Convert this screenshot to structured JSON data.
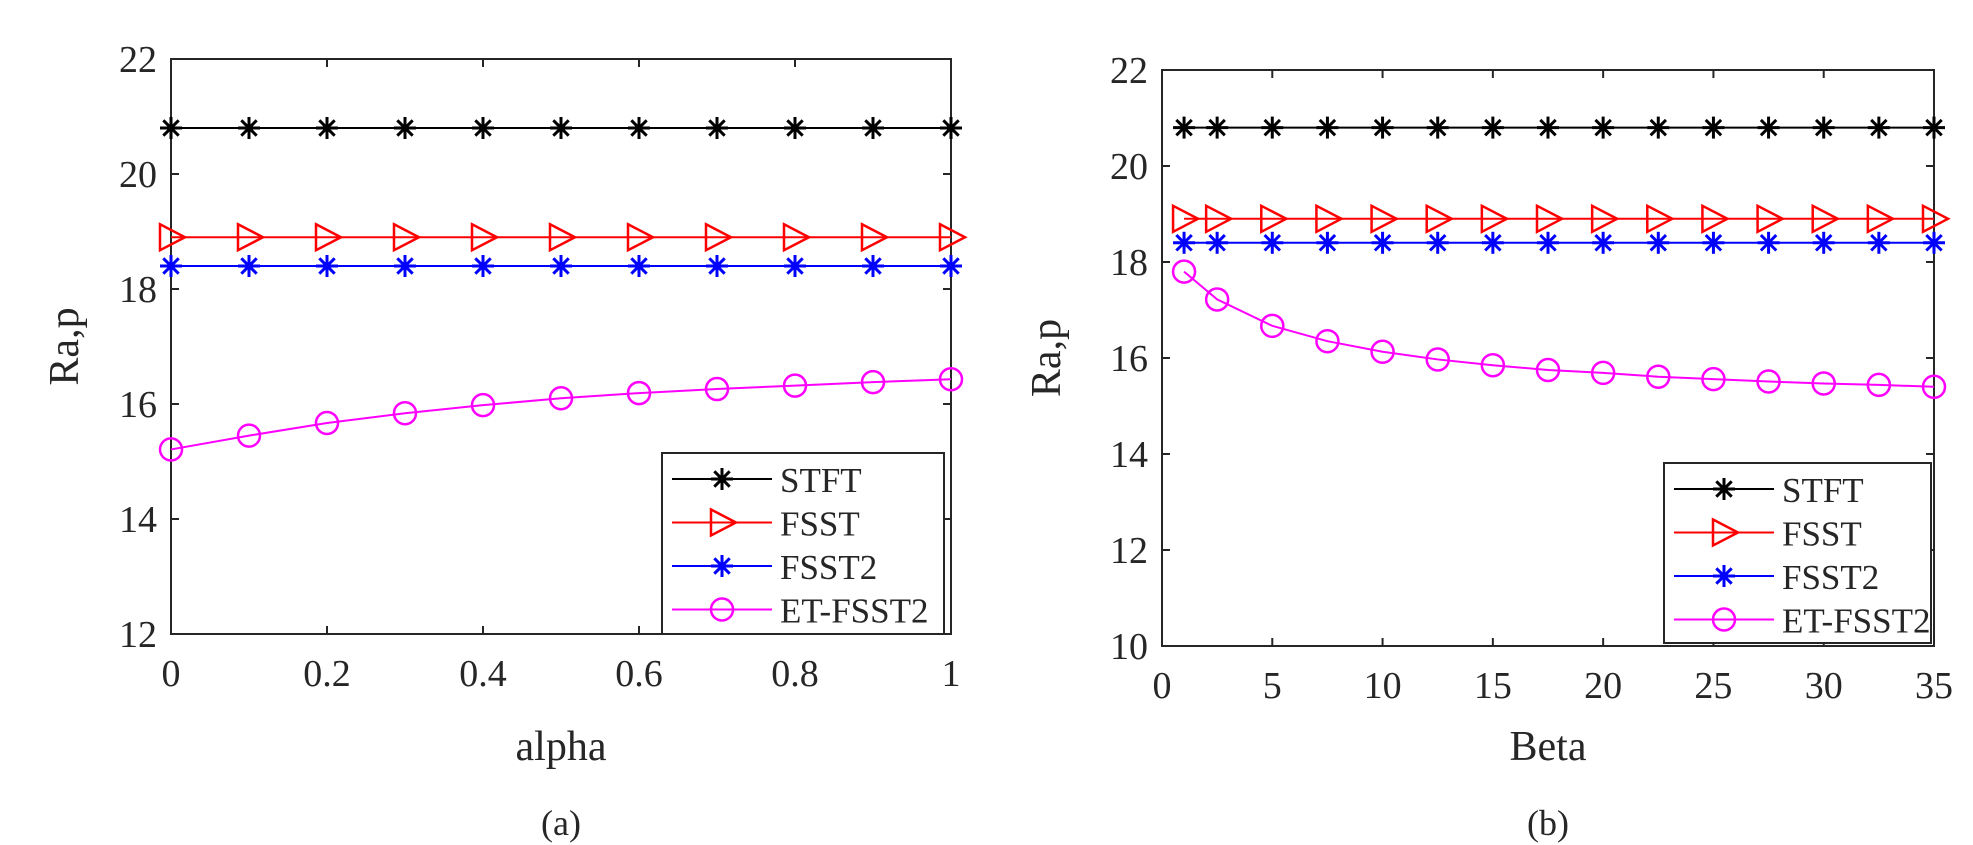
{
  "chart_data": [
    {
      "type": "line",
      "caption": "(a)",
      "xlabel": "alpha",
      "ylabel": "Ra,p",
      "xlim": [
        0,
        1
      ],
      "ylim": [
        12,
        22
      ],
      "xticks": [
        "0",
        "0.2",
        "0.4",
        "0.6",
        "0.8",
        "1"
      ],
      "xtick_values": [
        0,
        0.2,
        0.4,
        0.6,
        0.8,
        1
      ],
      "yticks": [
        "12",
        "14",
        "16",
        "18",
        "20",
        "22"
      ],
      "ytick_values": [
        12,
        14,
        16,
        18,
        20,
        22
      ],
      "grid": false,
      "legend_position": "bottom-right",
      "x": [
        0,
        0.1,
        0.2,
        0.3,
        0.4,
        0.5,
        0.6,
        0.7,
        0.8,
        0.9,
        1.0
      ],
      "series": [
        {
          "name": "STFT",
          "color": "#000000",
          "marker": "asterisk",
          "values": [
            20.8,
            20.8,
            20.8,
            20.8,
            20.8,
            20.8,
            20.8,
            20.8,
            20.8,
            20.8,
            20.8
          ]
        },
        {
          "name": "FSST",
          "color": "#ff0000",
          "marker": "triangle-right",
          "values": [
            18.9,
            18.9,
            18.9,
            18.9,
            18.9,
            18.9,
            18.9,
            18.9,
            18.9,
            18.9,
            18.9
          ]
        },
        {
          "name": "FSST2",
          "color": "#0000ff",
          "marker": "asterisk",
          "values": [
            18.4,
            18.4,
            18.4,
            18.4,
            18.4,
            18.4,
            18.4,
            18.4,
            18.4,
            18.4,
            18.4
          ]
        },
        {
          "name": "ET-FSST2",
          "color": "#ff00ff",
          "marker": "circle",
          "values": [
            15.21,
            15.45,
            15.67,
            15.84,
            15.98,
            16.1,
            16.19,
            16.26,
            16.32,
            16.38,
            16.43
          ]
        }
      ]
    },
    {
      "type": "line",
      "caption": "(b)",
      "xlabel": "Beta",
      "ylabel": "Ra,p",
      "xlim": [
        0,
        35
      ],
      "ylim": [
        10,
        22
      ],
      "xticks": [
        "0",
        "5",
        "10",
        "15",
        "20",
        "25",
        "30",
        "35"
      ],
      "xtick_values": [
        0,
        5,
        10,
        15,
        20,
        25,
        30,
        35
      ],
      "yticks": [
        "10",
        "12",
        "14",
        "16",
        "18",
        "20",
        "22"
      ],
      "ytick_values": [
        10,
        12,
        14,
        16,
        18,
        20,
        22
      ],
      "grid": false,
      "legend_position": "bottom-right",
      "x": [
        1,
        2.5,
        5,
        7.5,
        10,
        12.5,
        15,
        17.5,
        20,
        22.5,
        25,
        27.5,
        30,
        32.5,
        35
      ],
      "series": [
        {
          "name": "STFT",
          "color": "#000000",
          "marker": "asterisk",
          "values": [
            20.8,
            20.8,
            20.8,
            20.8,
            20.8,
            20.8,
            20.8,
            20.8,
            20.8,
            20.8,
            20.8,
            20.8,
            20.8,
            20.8,
            20.8
          ]
        },
        {
          "name": "FSST",
          "color": "#ff0000",
          "marker": "triangle-right",
          "values": [
            18.9,
            18.9,
            18.9,
            18.9,
            18.9,
            18.9,
            18.9,
            18.9,
            18.9,
            18.9,
            18.9,
            18.9,
            18.9,
            18.9,
            18.9
          ]
        },
        {
          "name": "FSST2",
          "color": "#0000ff",
          "marker": "asterisk",
          "values": [
            18.4,
            18.4,
            18.4,
            18.4,
            18.4,
            18.4,
            18.4,
            18.4,
            18.4,
            18.4,
            18.4,
            18.4,
            18.4,
            18.4,
            18.4
          ]
        },
        {
          "name": "ET-FSST2",
          "color": "#ff00ff",
          "marker": "circle",
          "values": [
            17.8,
            17.22,
            16.67,
            16.35,
            16.13,
            15.97,
            15.85,
            15.75,
            15.69,
            15.61,
            15.56,
            15.51,
            15.47,
            15.44,
            15.4
          ]
        }
      ]
    }
  ]
}
